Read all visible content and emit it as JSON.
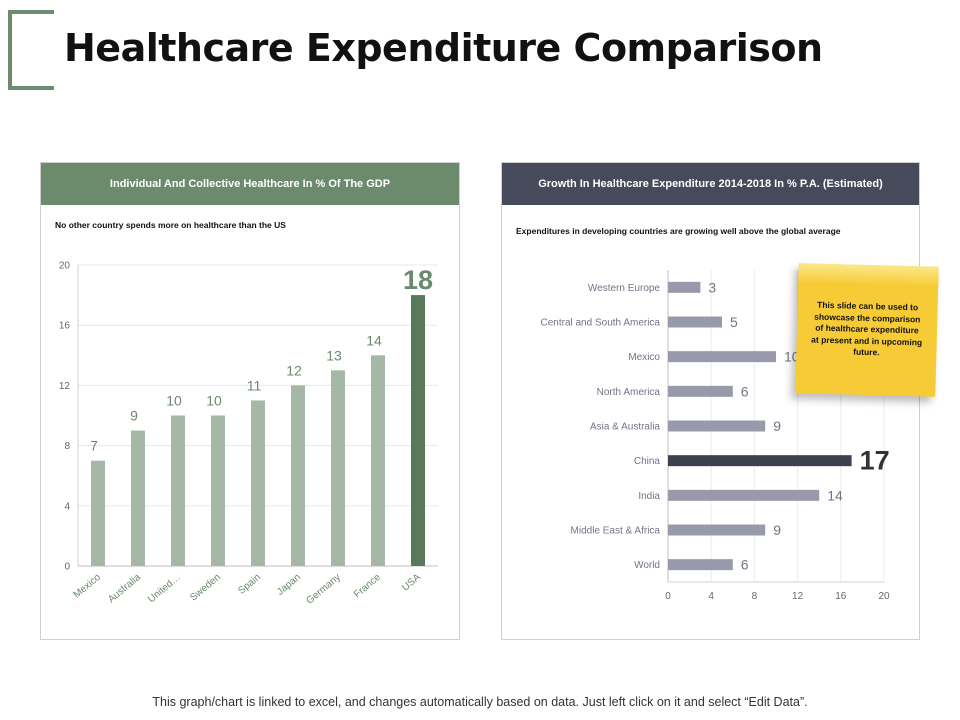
{
  "title": "Healthcare Expenditure Comparison",
  "footer": "This graph/chart is linked to excel, and changes automatically based on data. Just left click on it and select “Edit Data”.",
  "left_panel": {
    "header": "Individual And Collective Healthcare In % Of The GDP",
    "subtitle": "No other country spends more on healthcare than the US"
  },
  "right_panel": {
    "header": "Growth In Healthcare Expenditure 2014-2018 In % P.A. (Estimated)",
    "subtitle": "Expenditures in developing countries are growing well above the global average"
  },
  "sticky_note": "This slide can be used to showcase the comparison of healthcare expenditure at present and in upcoming future.",
  "colors": {
    "left_bar": "#a5b8a5",
    "left_highlight": "#587a5a",
    "right_bar": "#9899aa",
    "right_highlight": "#3e4050",
    "left_labels": "#6a8a6b",
    "right_labels": "#707585"
  },
  "chart_data": [
    {
      "type": "bar",
      "orientation": "vertical",
      "categories": [
        "Mexico",
        "Australia",
        "United…",
        "Sweden",
        "Spain",
        "Japan",
        "Germany",
        "France",
        "USA"
      ],
      "values": [
        7,
        9,
        10,
        10,
        11,
        12,
        13,
        14,
        18
      ],
      "highlight": "USA",
      "ylim": [
        0,
        20
      ],
      "yticks": [
        0,
        4,
        8,
        12,
        16,
        20
      ],
      "grid": true
    },
    {
      "type": "bar",
      "orientation": "horizontal",
      "categories": [
        "Western Europe",
        "Central and South America",
        "Mexico",
        "North America",
        "Asia & Australia",
        "China",
        "India",
        "Middle East & Africa",
        "World"
      ],
      "values": [
        3,
        5,
        10,
        6,
        9,
        17,
        14,
        9,
        6
      ],
      "highlight": "China",
      "xlim": [
        0,
        20
      ],
      "xticks": [
        0,
        4,
        8,
        12,
        16,
        20
      ],
      "grid": true
    }
  ]
}
